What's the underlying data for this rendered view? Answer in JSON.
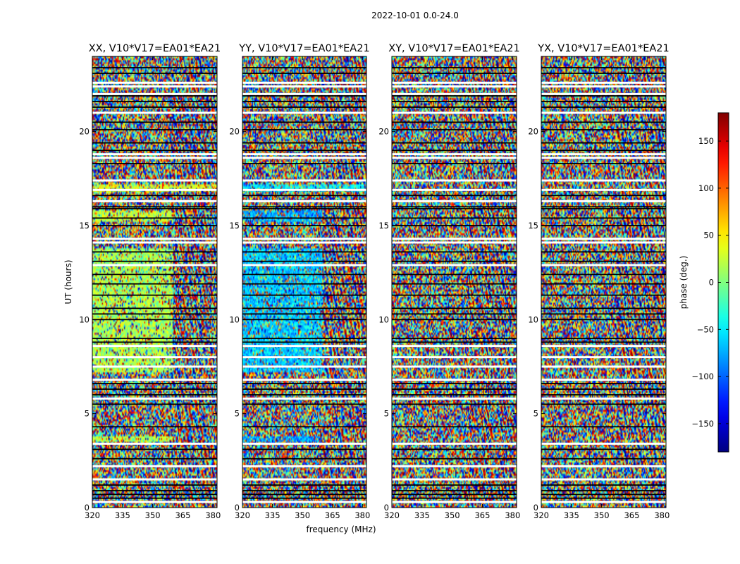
{
  "figure": {
    "suptitle": "2022-10-01 0.0-24.0"
  },
  "chart_data": [
    {
      "type": "heatmap",
      "title": "XX, V10*V17=EA01*EA21",
      "xlabel": "frequency (MHz)",
      "ylabel": "UT (hours)",
      "xlim": [
        320,
        382
      ],
      "ylim": [
        0,
        24
      ],
      "xticks": [
        320,
        335,
        350,
        365,
        380
      ],
      "yticks": [
        0,
        5,
        10,
        15,
        20
      ],
      "value": "phase (deg.)",
      "zlim": [
        -180,
        180
      ],
      "coherent_regions": [
        {
          "x": [
            320,
            360
          ],
          "y": [
            7.2,
            13.8
          ],
          "phase_deg": 15
        },
        {
          "x": [
            320,
            360
          ],
          "y": [
            15.2,
            15.8
          ],
          "phase_deg": 25
        },
        {
          "x": [
            320,
            360
          ],
          "y": [
            3.5,
            3.8
          ],
          "phase_deg": 20
        },
        {
          "x": [
            320,
            382
          ],
          "y": [
            16.8,
            17.2
          ],
          "phase_deg": 35
        }
      ]
    },
    {
      "type": "heatmap",
      "title": "YY, V10*V17=EA01*EA21",
      "xlabel": "frequency (MHz)",
      "ylabel": "UT (hours)",
      "xlim": [
        320,
        382
      ],
      "ylim": [
        0,
        24
      ],
      "xticks": [
        320,
        335,
        350,
        365,
        380
      ],
      "yticks": [
        0,
        5,
        10,
        15,
        20
      ],
      "value": "phase (deg.)",
      "zlim": [
        -180,
        180
      ],
      "coherent_regions": [
        {
          "x": [
            320,
            360
          ],
          "y": [
            7.2,
            13.8
          ],
          "phase_deg": -65
        },
        {
          "x": [
            320,
            360
          ],
          "y": [
            15.2,
            15.8
          ],
          "phase_deg": -75
        },
        {
          "x": [
            320,
            360
          ],
          "y": [
            3.5,
            3.8
          ],
          "phase_deg": -80
        },
        {
          "x": [
            320,
            382
          ],
          "y": [
            16.8,
            17.2
          ],
          "phase_deg": -50
        }
      ]
    },
    {
      "type": "heatmap",
      "title": "XY, V10*V17=EA01*EA21",
      "xlabel": "frequency (MHz)",
      "ylabel": "UT (hours)",
      "xlim": [
        320,
        382
      ],
      "ylim": [
        0,
        24
      ],
      "xticks": [
        320,
        335,
        350,
        365,
        380
      ],
      "yticks": [
        0,
        5,
        10,
        15,
        20
      ],
      "value": "phase (deg.)",
      "zlim": [
        -180,
        180
      ],
      "coherent_regions": []
    },
    {
      "type": "heatmap",
      "title": "YX, V10*V17=EA01*EA21",
      "xlabel": "frequency (MHz)",
      "ylabel": "UT (hours)",
      "xlim": [
        320,
        382
      ],
      "ylim": [
        0,
        24
      ],
      "xticks": [
        320,
        335,
        350,
        365,
        380
      ],
      "yticks": [
        0,
        5,
        10,
        15,
        20
      ],
      "value": "phase (deg.)",
      "zlim": [
        -180,
        180
      ],
      "coherent_regions": []
    }
  ],
  "shared": {
    "ylabel": "UT (hours)",
    "xlabel": "frequency (MHz)",
    "flag_rows_white_ut": [
      0.3,
      1.5,
      2.2,
      3.4,
      5.8,
      6.8,
      7.5,
      8.0,
      8.6,
      12.9,
      14.1,
      14.3,
      16.3,
      16.9,
      17.4,
      18.6,
      18.8,
      21.0,
      22.0,
      22.4,
      22.6
    ],
    "flag_rows_black_ut": [
      0.5,
      0.7,
      0.9,
      1.2,
      2.6,
      3.1,
      4.3,
      5.5,
      6.0,
      6.3,
      6.6,
      8.8,
      9.0,
      10.0,
      10.3,
      10.6,
      11.3,
      11.9,
      12.4,
      13.1,
      13.6,
      15.0,
      15.4,
      15.9,
      16.0,
      16.6,
      18.3,
      19.0,
      19.4,
      20.1,
      20.5,
      21.3,
      21.6,
      21.9,
      23.1,
      23.4
    ]
  },
  "colorbar": {
    "label": "phase (deg.)",
    "range": [
      -180,
      180
    ],
    "ticks": [
      -150,
      -100,
      -50,
      0,
      50,
      100,
      150
    ],
    "tick_labels": [
      "−150",
      "−100",
      "−50",
      "0",
      "50",
      "100",
      "150"
    ],
    "colormap": "jet"
  }
}
